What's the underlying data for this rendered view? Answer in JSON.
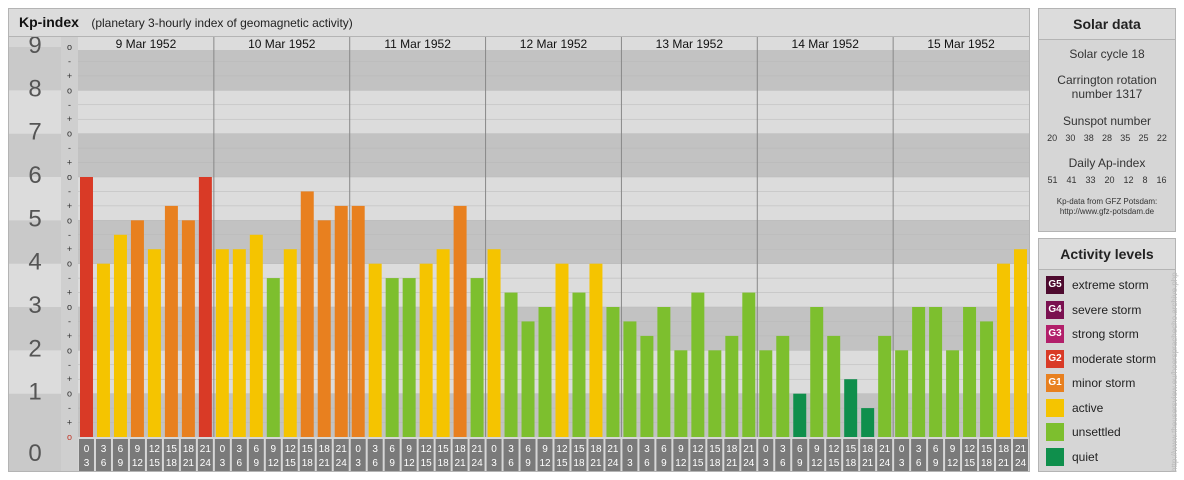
{
  "header": {
    "title": "Kp-index",
    "subtitle": "(planetary 3-hourly index of geomagnetic activity)"
  },
  "chart_data": {
    "type": "bar",
    "title": "Kp-index",
    "subtitle": "(planetary 3-hourly index of geomagnetic activity)",
    "ylim": [
      0,
      9
    ],
    "y_ticks": [
      "0",
      "1",
      "2",
      "3",
      "4",
      "5",
      "6",
      "7",
      "8",
      "9"
    ],
    "y_minor_ticks": [
      "o",
      "+",
      "-"
    ],
    "days": [
      "9 Mar 1952",
      "10 Mar 1952",
      "11 Mar 1952",
      "12 Mar 1952",
      "13 Mar 1952",
      "14 Mar 1952",
      "15 Mar 1952"
    ],
    "interval_labels_top": [
      "0",
      "3",
      "6",
      "9",
      "12",
      "15",
      "18",
      "21"
    ],
    "interval_labels_bottom": [
      "3",
      "6",
      "9",
      "12",
      "15",
      "18",
      "21",
      "24"
    ],
    "values": [
      6.0,
      4.0,
      4.667,
      5.0,
      4.333,
      5.333,
      5.0,
      6.0,
      4.333,
      4.333,
      4.667,
      3.667,
      4.333,
      5.667,
      5.0,
      5.333,
      5.333,
      4.0,
      3.667,
      3.667,
      4.0,
      4.333,
      5.333,
      3.667,
      4.333,
      3.333,
      2.667,
      3.0,
      4.0,
      3.333,
      4.0,
      3.0,
      2.667,
      2.333,
      3.0,
      2.0,
      3.333,
      2.0,
      2.333,
      3.333,
      2.0,
      2.333,
      1.0,
      3.0,
      2.333,
      1.333,
      0.667,
      2.333,
      2.0,
      3.0,
      3.0,
      2.0,
      3.0,
      2.667,
      4.0,
      4.333
    ],
    "grid": true,
    "legend_position": "right"
  },
  "solar": {
    "title": "Solar data",
    "cycle": "Solar cycle 18",
    "carrington_line1": "Carrington rotation",
    "carrington_line2": "number 1317",
    "sunspot_title": "Sunspot number",
    "sunspot_values": [
      "20",
      "30",
      "38",
      "28",
      "35",
      "25",
      "22"
    ],
    "ap_title": "Daily Ap-index",
    "ap_values": [
      "51",
      "41",
      "33",
      "20",
      "12",
      "8",
      "16"
    ],
    "source_line1": "Kp-data from GFZ Potsdam:",
    "source_line2": "http://www.gfz-potsdam.de"
  },
  "activity": {
    "title": "Activity levels",
    "levels": [
      {
        "code": "G5",
        "label": "extreme storm",
        "color": "#4d0a2e"
      },
      {
        "code": "G4",
        "label": "severe storm",
        "color": "#7a1050"
      },
      {
        "code": "G3",
        "label": "strong storm",
        "color": "#b21f6a"
      },
      {
        "code": "G2",
        "label": "moderate storm",
        "color": "#d93a26"
      },
      {
        "code": "G1",
        "label": "minor storm",
        "color": "#e8801f"
      },
      {
        "code": "",
        "label": "active",
        "color": "#f5c400"
      },
      {
        "code": "",
        "label": "unsettled",
        "color": "#7dbf2e"
      },
      {
        "code": "",
        "label": "quiet",
        "color": "#0f8f4c"
      }
    ]
  },
  "watermark": "http://www.theusersview.eu/hoersprachecho.archive.php"
}
